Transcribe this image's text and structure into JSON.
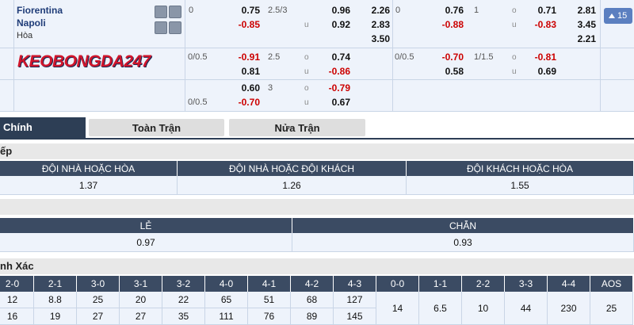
{
  "odds": {
    "home": "Fiorentina",
    "away": "Napoli",
    "draw": "Hòa",
    "logo": "KEOBONGDA247",
    "expand": "15",
    "cells": [
      "0",
      "0.75",
      "-0.85",
      "2.5/3",
      "u",
      "0.96",
      "0.92",
      "2.26",
      "2.83",
      "3.50",
      "0",
      "0.76",
      "-0.88",
      "1",
      "o",
      "u",
      "0.71",
      "-0.83",
      "2.81",
      "3.45",
      "2.21",
      "0/0.5",
      "-0.91",
      "2.5",
      "o",
      "0.74",
      "0.81",
      "u",
      "-0.86",
      "0/0.5",
      "-0.70",
      "1/1.5",
      "o",
      "-0.81",
      "0.58",
      "u",
      "0.69",
      "0.60",
      "3",
      "o",
      "-0.79",
      "0/0.5",
      "-0.70",
      "u",
      "0.67"
    ]
  },
  "tabs": [
    "Chính",
    "Toàn Trận",
    "Nửa Trận"
  ],
  "double_chance": {
    "title": "ếp",
    "headers": [
      "ĐỘI NHÀ HOẶC HÒA",
      "ĐỘI NHÀ HOẶC ĐỘI KHÁCH",
      "ĐỘI KHÁCH HOẶC HÒA"
    ],
    "values": [
      "1.37",
      "1.26",
      "1.55"
    ]
  },
  "odd_even": {
    "headers": [
      "LẺ",
      "CHẴN"
    ],
    "values": [
      "0.97",
      "0.93"
    ]
  },
  "correct_score": {
    "title": "nh Xác",
    "headers": [
      "2-0",
      "2-1",
      "3-0",
      "3-1",
      "3-2",
      "4-0",
      "4-1",
      "4-2",
      "4-3",
      "0-0",
      "1-1",
      "2-2",
      "3-3",
      "4-4",
      "AOS"
    ],
    "rows": [
      [
        "12",
        "8.8",
        "25",
        "20",
        "22",
        "65",
        "51",
        "68",
        "127"
      ],
      [
        "16",
        "19",
        "27",
        "27",
        "35",
        "111",
        "76",
        "89",
        "145"
      ]
    ],
    "merged": [
      "14",
      "6.5",
      "10",
      "44",
      "230",
      "25"
    ]
  }
}
